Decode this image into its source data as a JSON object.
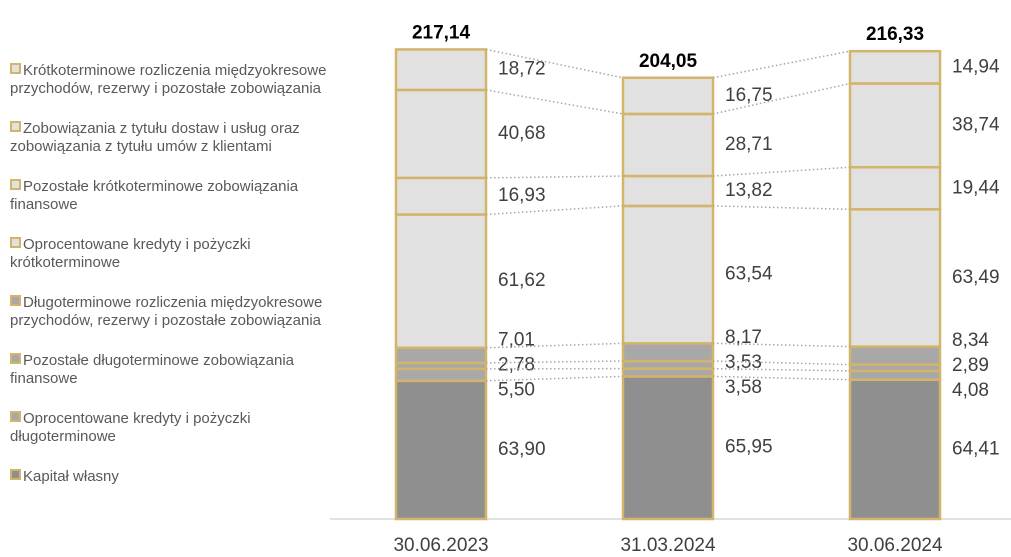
{
  "chart_data": {
    "type": "stacked_bar",
    "categories": [
      "30.06.2023",
      "31.03.2024",
      "30.06.2024"
    ],
    "series": [
      {
        "name": "Kapitał własny",
        "color": "#8f8f8f",
        "values": [
          63.9,
          65.95,
          64.41
        ],
        "value_labels": [
          "63,90",
          "65,95",
          "64,41"
        ]
      },
      {
        "name": "Oprocentowane kredyty i pożyczki długoterminowe",
        "color": "#a8a8a8",
        "values": [
          5.5,
          3.58,
          4.08
        ],
        "value_labels": [
          "5,50",
          "3,58",
          "4,08"
        ]
      },
      {
        "name": "Pozostałe długoterminowe zobowiązania finansowe",
        "color": "#a8a8a8",
        "values": [
          2.78,
          3.53,
          2.89
        ],
        "value_labels": [
          "2,78",
          "3,53",
          "2,89"
        ]
      },
      {
        "name": "Długoterminowe rozliczenia międzyokresowe przychodów, rezerwy i pozostałe zobowiązania",
        "color": "#a8a8a8",
        "values": [
          7.01,
          8.17,
          8.34
        ],
        "value_labels": [
          "7,01",
          "8,17",
          "8,34"
        ]
      },
      {
        "name": "Oprocentowane kredyty i pożyczki krótkoterminowe",
        "color": "#e1e1e1",
        "values": [
          61.62,
          63.54,
          63.49
        ],
        "value_labels": [
          "61,62",
          "63,54",
          "63,49"
        ]
      },
      {
        "name": "Pozostałe krótkoterminowe zobowiązania finansowe",
        "color": "#e1e1e1",
        "values": [
          16.93,
          13.82,
          19.44
        ],
        "value_labels": [
          "16,93",
          "13,82",
          "19,44"
        ]
      },
      {
        "name": "Zobowiązania z tytułu dostaw i usług oraz zobowiązania z tytułu umów z klientami",
        "color": "#e1e1e1",
        "values": [
          40.68,
          28.71,
          38.74
        ],
        "value_labels": [
          "40,68",
          "28,71",
          "38,74"
        ]
      },
      {
        "name": "Krótkoterminowe rozliczenia międzyokresowe przychodów, rezerwy i pozostałe zobowiązania",
        "color": "#e1e1e1",
        "values": [
          18.72,
          16.75,
          14.94
        ],
        "value_labels": [
          "18,72",
          "16,75",
          "14,94"
        ]
      }
    ],
    "totals": [
      217.14,
      204.05,
      216.33
    ],
    "total_labels": [
      "217,14",
      "204,05",
      "216,33"
    ],
    "border_color": "#d4b46a",
    "ylim": [
      0,
      240
    ]
  }
}
